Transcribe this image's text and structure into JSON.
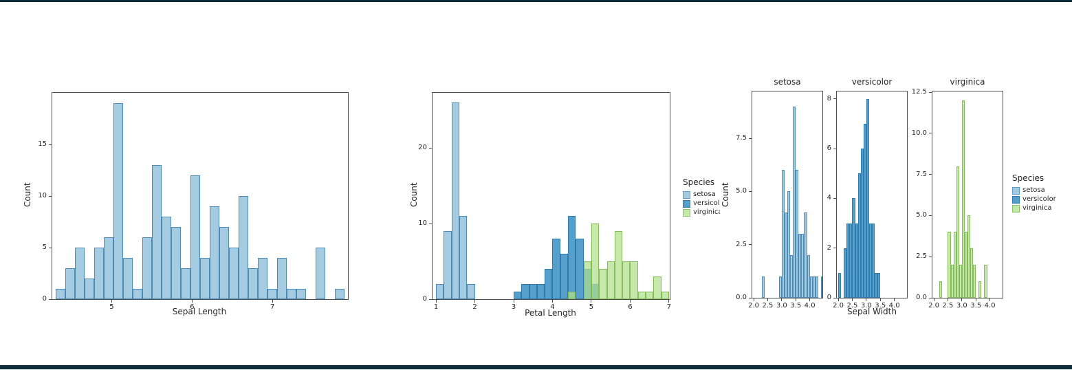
{
  "page": {
    "background": "#ffffff",
    "top_border_color": "#0d2d3b",
    "bottom_border_color": "#0d2d3b"
  },
  "chart_data": [
    {
      "type": "bar",
      "title": "",
      "xlabel": "Sepal Length",
      "ylabel": "Count",
      "grid": false,
      "xlim": [
        4.26,
        7.94
      ],
      "ylim": [
        0,
        20
      ],
      "x_ticks": [
        {
          "v": 5,
          "label": "5"
        },
        {
          "v": 6,
          "label": "6"
        },
        {
          "v": 7,
          "label": "7"
        }
      ],
      "y_ticks": [
        {
          "v": 0,
          "label": "0"
        },
        {
          "v": 5,
          "label": "5"
        },
        {
          "v": 10,
          "label": "10"
        },
        {
          "v": 15,
          "label": "15"
        }
      ],
      "series": [
        {
          "name": "sepal_length",
          "bin_start": 4.3,
          "bin_width": 0.12,
          "counts": [
            1,
            3,
            5,
            2,
            5,
            6,
            19,
            4,
            1,
            6,
            13,
            8,
            7,
            3,
            12,
            4,
            9,
            7,
            5,
            10,
            3,
            4,
            1,
            4,
            1,
            1,
            0,
            5,
            0,
            1
          ],
          "fill": "#a5cbe0",
          "edge": "#4b8bb8"
        }
      ]
    },
    {
      "type": "bar",
      "title": "",
      "xlabel": "Petal Length",
      "ylabel": "Count",
      "grid": false,
      "xlim": [
        0.91,
        7.02
      ],
      "ylim": [
        0,
        27.3
      ],
      "x_ticks": [
        {
          "v": 1,
          "label": "1"
        },
        {
          "v": 2,
          "label": "2"
        },
        {
          "v": 3,
          "label": "3"
        },
        {
          "v": 4,
          "label": "4"
        },
        {
          "v": 5,
          "label": "5"
        },
        {
          "v": 6,
          "label": "6"
        },
        {
          "v": 7,
          "label": "7"
        }
      ],
      "y_ticks": [
        {
          "v": 0,
          "label": "0"
        },
        {
          "v": 10,
          "label": "10"
        },
        {
          "v": 20,
          "label": "20"
        }
      ],
      "legend": {
        "title": "Species",
        "position": "right, clipped at figure edge",
        "entries": [
          {
            "label": "setosa",
            "fill": "#a5cbe0",
            "edge": "#5d9cc4"
          },
          {
            "label": "versicolor",
            "fill": "#579fcb",
            "edge": "#2d7cb0"
          },
          {
            "label": "virginica",
            "fill": "#c5e7a7",
            "edge": "#8cc16c"
          }
        ]
      },
      "series": [
        {
          "name": "setosa",
          "bin_start": 1.0,
          "bin_width": 0.2,
          "counts": [
            2,
            9,
            26,
            11,
            2
          ],
          "fill": "#a5cbe0",
          "edge": "#4b8bb8"
        },
        {
          "name": "versicolor",
          "bin_start": 3.0,
          "bin_width": 0.2,
          "counts": [
            1,
            2,
            2,
            2,
            4,
            8,
            6,
            11,
            8,
            4,
            2
          ],
          "fill": "#579fcb",
          "edge": "#2d7cb0"
        },
        {
          "name": "virginica",
          "bin_start": 4.4,
          "bin_width": 0.2,
          "counts": [
            1,
            0,
            5,
            10,
            4,
            5,
            9,
            5,
            5,
            1,
            1,
            3,
            1
          ],
          "fill": "rgba(178,223,138,0.72)",
          "edge": "rgba(124,183,81,0.9)"
        }
      ]
    },
    {
      "type": "bar",
      "title": "",
      "xlabel": "Sepal Width",
      "ylabel": "Count",
      "grid": false,
      "legend": {
        "title": "Species",
        "position": "right of facets",
        "entries": [
          {
            "label": "setosa",
            "fill": "#a5cbe0",
            "edge": "#5d9cc4"
          },
          {
            "label": "versicolor",
            "fill": "#579fcb",
            "edge": "#2d7cb0"
          },
          {
            "label": "virginica",
            "fill": "#c5e7a7",
            "edge": "#8cc16c"
          }
        ]
      },
      "facets": [
        {
          "title": "setosa",
          "xlim": [
            1.95,
            4.45
          ],
          "ylim": [
            0,
            9.7
          ],
          "x_ticks": [
            {
              "v": 2.0,
              "label": "2.0"
            },
            {
              "v": 2.5,
              "label": "2.5"
            },
            {
              "v": 3.0,
              "label": "3.0"
            },
            {
              "v": 3.5,
              "label": "3.5"
            },
            {
              "v": 4.0,
              "label": "4.0"
            }
          ],
          "y_ticks": [
            {
              "v": 0,
              "label": "0.0"
            },
            {
              "v": 2.5,
              "label": "2.5"
            },
            {
              "v": 5,
              "label": "5.0"
            },
            {
              "v": 7.5,
              "label": "7.5"
            }
          ],
          "series": [
            {
              "name": "setosa",
              "bin_start": 2.3,
              "bin_width": 0.1,
              "counts": [
                1,
                0,
                0,
                0,
                0,
                0,
                1,
                6,
                4,
                5,
                2,
                9,
                6,
                3,
                3,
                4,
                2,
                1,
                1,
                1,
                0,
                1
              ],
              "fill": "#a5cbe0",
              "edge": "#4b8bb8"
            }
          ]
        },
        {
          "title": "versicolor",
          "xlim": [
            1.95,
            4.45
          ],
          "ylim": [
            0,
            8.3
          ],
          "x_ticks": [
            {
              "v": 2.0,
              "label": "2.0"
            },
            {
              "v": 2.5,
              "label": "2.5"
            },
            {
              "v": 3.0,
              "label": "3.0"
            },
            {
              "v": 3.5,
              "label": "3.5"
            },
            {
              "v": 4.0,
              "label": "4.0"
            }
          ],
          "y_ticks": [
            {
              "v": 0,
              "label": "0"
            },
            {
              "v": 2,
              "label": "2"
            },
            {
              "v": 4,
              "label": "4"
            },
            {
              "v": 6,
              "label": "6"
            },
            {
              "v": 8,
              "label": "8"
            }
          ],
          "series": [
            {
              "name": "versicolor",
              "bin_start": 2.0,
              "bin_width": 0.1,
              "counts": [
                1,
                0,
                2,
                3,
                3,
                4,
                3,
                5,
                6,
                7,
                8,
                3,
                3,
                1,
                1
              ],
              "fill": "#579fcb",
              "edge": "#2d7cb0"
            }
          ]
        },
        {
          "title": "virginica",
          "xlim": [
            1.95,
            4.45
          ],
          "ylim": [
            0,
            12.55
          ],
          "x_ticks": [
            {
              "v": 2.0,
              "label": "2.0"
            },
            {
              "v": 2.5,
              "label": "2.5"
            },
            {
              "v": 3.0,
              "label": "3.0"
            },
            {
              "v": 3.5,
              "label": "3.5"
            },
            {
              "v": 4.0,
              "label": "4.0"
            }
          ],
          "y_ticks": [
            {
              "v": 0,
              "label": "0.0"
            },
            {
              "v": 2.5,
              "label": "2.5"
            },
            {
              "v": 5,
              "label": "5.0"
            },
            {
              "v": 7.5,
              "label": "7.5"
            },
            {
              "v": 10,
              "label": "10.0"
            },
            {
              "v": 12.5,
              "label": "12.5"
            }
          ],
          "series": [
            {
              "name": "virginica",
              "bin_start": 2.2,
              "bin_width": 0.1,
              "counts": [
                1,
                0,
                0,
                4,
                2,
                4,
                8,
                2,
                12,
                4,
                5,
                3,
                2,
                0,
                1,
                0,
                2
              ],
              "fill": "rgba(178,223,138,0.72)",
              "edge": "rgba(124,183,81,0.9)"
            }
          ]
        }
      ]
    }
  ]
}
